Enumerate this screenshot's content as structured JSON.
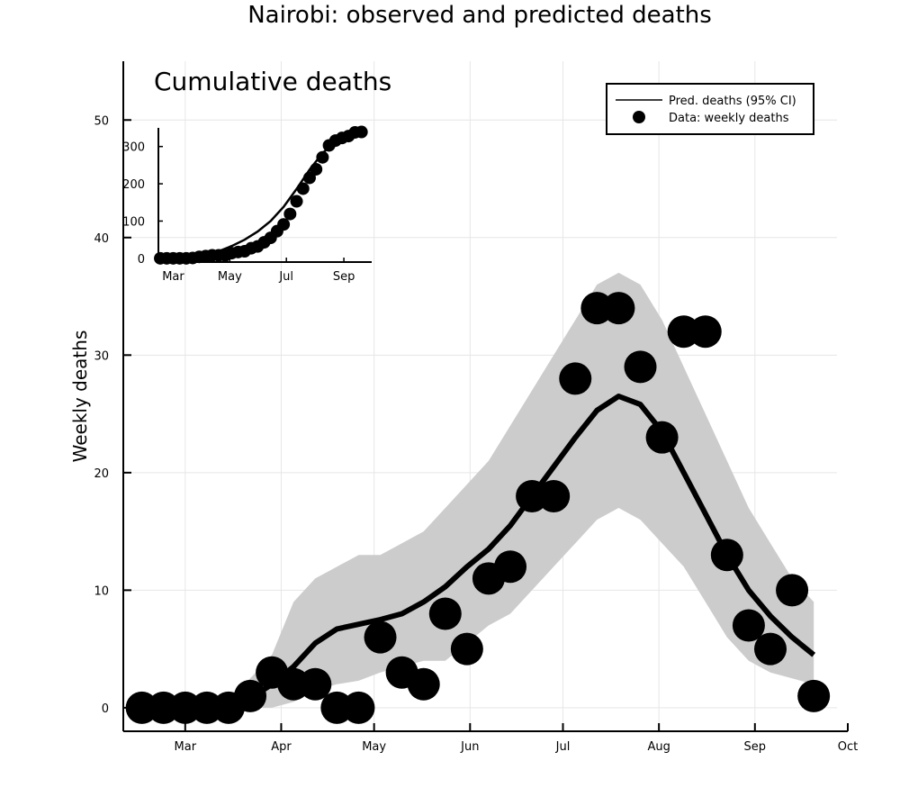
{
  "chart_data": [
    {
      "type": "line",
      "title": "Nairobi: observed and predicted deaths",
      "ylabel": "Weekly deaths",
      "xlabel": "",
      "x_ticks": [
        "Mar",
        "Apr",
        "May",
        "Jun",
        "Jul",
        "Aug",
        "Sep",
        "Oct"
      ],
      "x_tick_dates": [
        "2020-03-01",
        "2020-04-01",
        "2020-05-01",
        "2020-06-01",
        "2020-07-01",
        "2020-08-01",
        "2020-09-01",
        "2020-10-01"
      ],
      "xlim": [
        "2020-02-10",
        "2020-10-01"
      ],
      "y_ticks": [
        0,
        10,
        20,
        30,
        40,
        50
      ],
      "ylim": [
        -2,
        55
      ],
      "grid": true,
      "legend_position": "top-right",
      "series": [
        {
          "name": "Pred. deaths (95% CI)",
          "kind": "line_with_band",
          "color": "#000000",
          "band_color": "#cccccc",
          "points": [
            {
              "x": "2020-02-16",
              "y": 0,
              "lower": 0,
              "upper": 0
            },
            {
              "x": "2020-02-23",
              "y": 0,
              "lower": 0,
              "upper": 0
            },
            {
              "x": "2020-03-01",
              "y": 0,
              "lower": 0,
              "upper": 0
            },
            {
              "x": "2020-03-08",
              "y": 0,
              "lower": 0,
              "upper": 0
            },
            {
              "x": "2020-03-15",
              "y": 0.2,
              "lower": 0,
              "upper": 1
            },
            {
              "x": "2020-03-22",
              "y": 0.8,
              "lower": 0,
              "upper": 2.5
            },
            {
              "x": "2020-03-29",
              "y": 2,
              "lower": 0,
              "upper": 4.5
            },
            {
              "x": "2020-04-05",
              "y": 3.5,
              "lower": 0.5,
              "upper": 9
            },
            {
              "x": "2020-04-12",
              "y": 5.5,
              "lower": 1.5,
              "upper": 11
            },
            {
              "x": "2020-04-19",
              "y": 6.7,
              "lower": 2,
              "upper": 12
            },
            {
              "x": "2020-04-26",
              "y": 7.1,
              "lower": 2.3,
              "upper": 13
            },
            {
              "x": "2020-05-03",
              "y": 7.5,
              "lower": 3,
              "upper": 13
            },
            {
              "x": "2020-05-10",
              "y": 8,
              "lower": 3.5,
              "upper": 14
            },
            {
              "x": "2020-05-17",
              "y": 9,
              "lower": 4,
              "upper": 15
            },
            {
              "x": "2020-05-24",
              "y": 10.3,
              "lower": 4,
              "upper": 17
            },
            {
              "x": "2020-05-31",
              "y": 12,
              "lower": 5.5,
              "upper": 19
            },
            {
              "x": "2020-06-07",
              "y": 13.5,
              "lower": 7,
              "upper": 21
            },
            {
              "x": "2020-06-14",
              "y": 15.5,
              "lower": 8,
              "upper": 24
            },
            {
              "x": "2020-06-21",
              "y": 18,
              "lower": 10,
              "upper": 27
            },
            {
              "x": "2020-06-28",
              "y": 20.5,
              "lower": 12,
              "upper": 30
            },
            {
              "x": "2020-07-05",
              "y": 23,
              "lower": 14,
              "upper": 33
            },
            {
              "x": "2020-07-12",
              "y": 25.3,
              "lower": 16,
              "upper": 36
            },
            {
              "x": "2020-07-19",
              "y": 26.5,
              "lower": 17,
              "upper": 37
            },
            {
              "x": "2020-07-26",
              "y": 25.8,
              "lower": 16,
              "upper": 36
            },
            {
              "x": "2020-08-02",
              "y": 23.5,
              "lower": 14,
              "upper": 33
            },
            {
              "x": "2020-08-09",
              "y": 20,
              "lower": 12,
              "upper": 29
            },
            {
              "x": "2020-08-16",
              "y": 16.5,
              "lower": 9,
              "upper": 25
            },
            {
              "x": "2020-08-23",
              "y": 13,
              "lower": 6,
              "upper": 21
            },
            {
              "x": "2020-08-30",
              "y": 10,
              "lower": 4,
              "upper": 17
            },
            {
              "x": "2020-09-06",
              "y": 7.8,
              "lower": 3,
              "upper": 14
            },
            {
              "x": "2020-09-13",
              "y": 6,
              "lower": 2.5,
              "upper": 11
            },
            {
              "x": "2020-09-20",
              "y": 4.5,
              "lower": 2,
              "upper": 9
            }
          ]
        },
        {
          "name": "Data: weekly deaths",
          "kind": "scatter",
          "color": "#000000",
          "points": [
            {
              "x": "2020-02-16",
              "y": 0
            },
            {
              "x": "2020-02-23",
              "y": 0
            },
            {
              "x": "2020-03-01",
              "y": 0
            },
            {
              "x": "2020-03-08",
              "y": 0
            },
            {
              "x": "2020-03-15",
              "y": 0
            },
            {
              "x": "2020-03-22",
              "y": 1
            },
            {
              "x": "2020-03-29",
              "y": 3
            },
            {
              "x": "2020-04-05",
              "y": 2
            },
            {
              "x": "2020-04-12",
              "y": 2
            },
            {
              "x": "2020-04-19",
              "y": 0
            },
            {
              "x": "2020-04-26",
              "y": 0
            },
            {
              "x": "2020-05-03",
              "y": 6
            },
            {
              "x": "2020-05-10",
              "y": 3
            },
            {
              "x": "2020-05-17",
              "y": 2
            },
            {
              "x": "2020-05-24",
              "y": 8
            },
            {
              "x": "2020-05-31",
              "y": 5
            },
            {
              "x": "2020-06-07",
              "y": 11
            },
            {
              "x": "2020-06-14",
              "y": 12
            },
            {
              "x": "2020-06-21",
              "y": 18
            },
            {
              "x": "2020-06-28",
              "y": 18
            },
            {
              "x": "2020-07-05",
              "y": 28
            },
            {
              "x": "2020-07-12",
              "y": 34
            },
            {
              "x": "2020-07-19",
              "y": 34
            },
            {
              "x": "2020-07-26",
              "y": 29
            },
            {
              "x": "2020-08-02",
              "y": 23
            },
            {
              "x": "2020-08-09",
              "y": 32
            },
            {
              "x": "2020-08-16",
              "y": 32
            },
            {
              "x": "2020-08-23",
              "y": 13
            },
            {
              "x": "2020-08-30",
              "y": 7
            },
            {
              "x": "2020-09-06",
              "y": 5
            },
            {
              "x": "2020-09-13",
              "y": 10
            },
            {
              "x": "2020-09-20",
              "y": 1
            }
          ]
        }
      ]
    },
    {
      "type": "line",
      "title": "Cumulative deaths",
      "xlabel": "",
      "ylabel": "",
      "x_ticks": [
        "Mar",
        "May",
        "Jul",
        "Sep"
      ],
      "x_tick_dates": [
        "2020-03-01",
        "2020-05-01",
        "2020-07-01",
        "2020-09-01"
      ],
      "xlim": [
        "2020-02-14",
        "2020-10-01"
      ],
      "y_ticks": [
        0,
        100,
        200,
        300
      ],
      "ylim": [
        -10,
        350
      ],
      "grid": false,
      "series": [
        {
          "name": "",
          "kind": "line",
          "color": "#000000",
          "points": [
            {
              "x": "2020-02-16",
              "y": 0
            },
            {
              "x": "2020-03-08",
              "y": 0
            },
            {
              "x": "2020-03-22",
              "y": 1
            },
            {
              "x": "2020-04-05",
              "y": 6
            },
            {
              "x": "2020-04-19",
              "y": 19
            },
            {
              "x": "2020-05-03",
              "y": 33
            },
            {
              "x": "2020-05-17",
              "y": 50
            },
            {
              "x": "2020-05-31",
              "y": 72
            },
            {
              "x": "2020-06-14",
              "y": 100
            },
            {
              "x": "2020-06-28",
              "y": 138
            },
            {
              "x": "2020-07-12",
              "y": 186
            },
            {
              "x": "2020-07-26",
              "y": 238
            },
            {
              "x": "2020-08-09",
              "y": 282
            },
            {
              "x": "2020-08-23",
              "y": 314
            },
            {
              "x": "2020-09-06",
              "y": 332
            },
            {
              "x": "2020-09-20",
              "y": 343
            }
          ]
        },
        {
          "name": "",
          "kind": "scatter",
          "color": "#000000",
          "points": [
            {
              "x": "2020-02-16",
              "y": 0
            },
            {
              "x": "2020-02-23",
              "y": 0
            },
            {
              "x": "2020-03-01",
              "y": 0
            },
            {
              "x": "2020-03-08",
              "y": 0
            },
            {
              "x": "2020-03-15",
              "y": 0
            },
            {
              "x": "2020-03-22",
              "y": 1
            },
            {
              "x": "2020-03-29",
              "y": 4
            },
            {
              "x": "2020-04-05",
              "y": 6
            },
            {
              "x": "2020-04-12",
              "y": 8
            },
            {
              "x": "2020-04-19",
              "y": 8
            },
            {
              "x": "2020-04-26",
              "y": 8
            },
            {
              "x": "2020-05-03",
              "y": 14
            },
            {
              "x": "2020-05-10",
              "y": 17
            },
            {
              "x": "2020-05-17",
              "y": 19
            },
            {
              "x": "2020-05-24",
              "y": 27
            },
            {
              "x": "2020-05-31",
              "y": 32
            },
            {
              "x": "2020-06-07",
              "y": 43
            },
            {
              "x": "2020-06-14",
              "y": 55
            },
            {
              "x": "2020-06-21",
              "y": 73
            },
            {
              "x": "2020-06-28",
              "y": 91
            },
            {
              "x": "2020-07-05",
              "y": 119
            },
            {
              "x": "2020-07-12",
              "y": 153
            },
            {
              "x": "2020-07-19",
              "y": 187
            },
            {
              "x": "2020-07-26",
              "y": 216
            },
            {
              "x": "2020-08-02",
              "y": 239
            },
            {
              "x": "2020-08-09",
              "y": 271
            },
            {
              "x": "2020-08-16",
              "y": 303
            },
            {
              "x": "2020-08-23",
              "y": 316
            },
            {
              "x": "2020-08-30",
              "y": 323
            },
            {
              "x": "2020-09-06",
              "y": 328
            },
            {
              "x": "2020-09-13",
              "y": 338
            },
            {
              "x": "2020-09-20",
              "y": 339
            }
          ]
        }
      ]
    }
  ]
}
